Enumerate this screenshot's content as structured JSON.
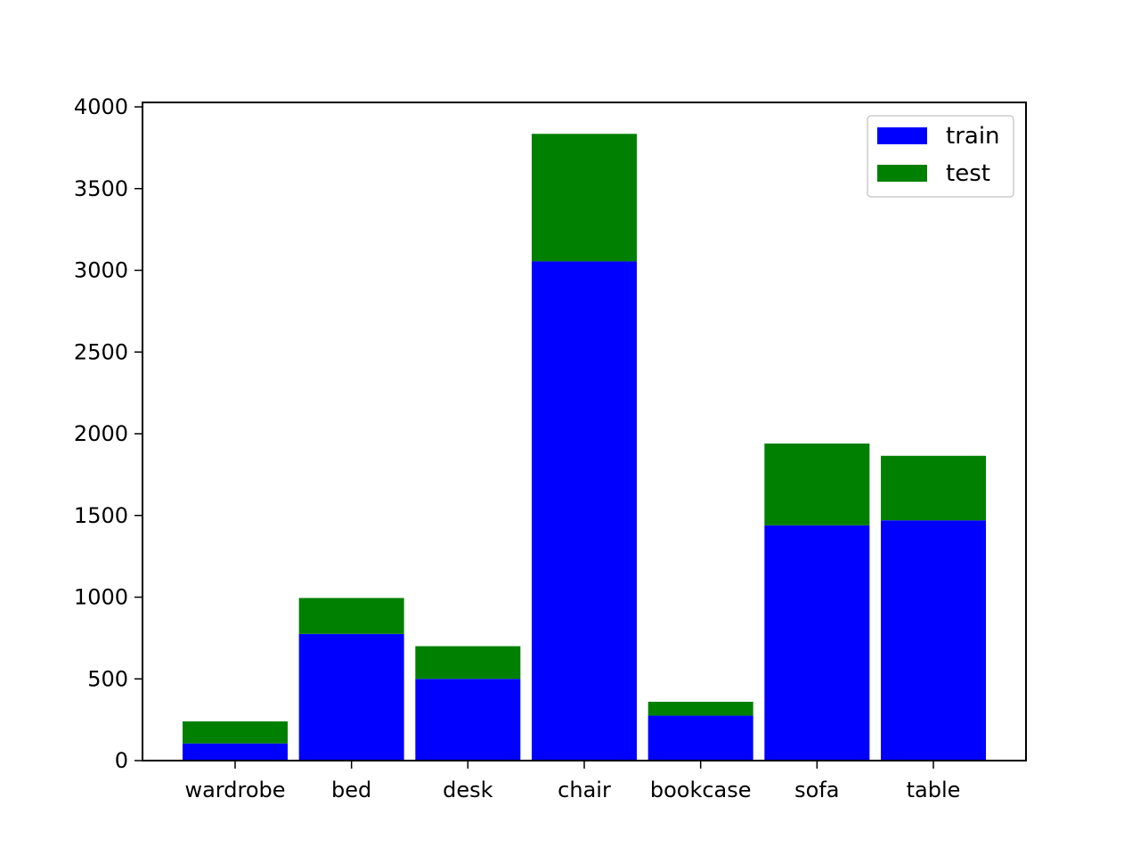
{
  "chart_data": {
    "type": "bar",
    "stacked": true,
    "categories": [
      "wardrobe",
      "bed",
      "desk",
      "chair",
      "bookcase",
      "sofa",
      "table"
    ],
    "series": [
      {
        "name": "train",
        "color": "#0000ff",
        "values": [
          105,
          775,
          500,
          3055,
          275,
          1440,
          1470
        ]
      },
      {
        "name": "test",
        "color": "#008000",
        "values": [
          135,
          220,
          200,
          780,
          85,
          500,
          395
        ]
      }
    ],
    "title": "",
    "xlabel": "",
    "ylabel": "",
    "ylim": [
      0,
      4000
    ],
    "yticks": [
      0,
      500,
      1000,
      1500,
      2000,
      2500,
      3000,
      3500,
      4000
    ],
    "grid": false,
    "legend_position": "top-right"
  }
}
